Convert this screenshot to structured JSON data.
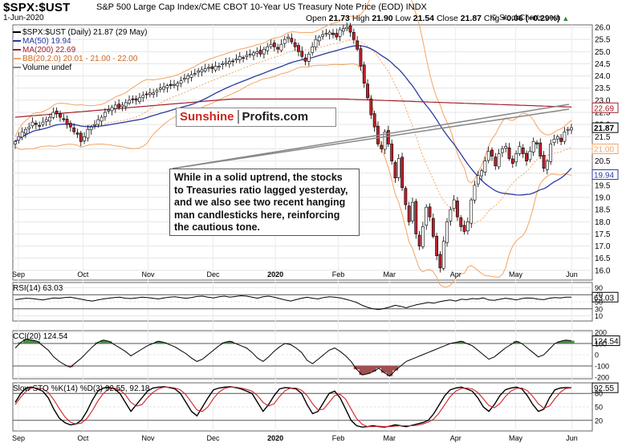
{
  "header": {
    "symbol": "$SPX:$UST",
    "description": "S&P 500 Large Cap Index/CME CBOT 10-Year US Treasury Note Price (EOD)  INDX",
    "date": "1-Jun-2020",
    "copyright": "© StockCharts.com",
    "ohlc": {
      "open_label": "Open",
      "open": "21.73",
      "high_label": "High",
      "high": "21.90",
      "low_label": "Low",
      "low": "21.54",
      "close_label": "Close",
      "close": "21.87",
      "chg_label": "Chg",
      "chg": "+0.06 (+0.29%)",
      "chg_icon": "up-arrow-icon"
    }
  },
  "legend": {
    "main": "$SPX:$UST (Daily) 21.87 (29 May)",
    "ma50": "MA(50) 19.94",
    "ma200": "MA(200) 22.69",
    "bb": "BB(20,2.0) 20.01 - 21.00 - 22.00",
    "volume": "Volume undef"
  },
  "colors": {
    "ma50": "#2b3a9e",
    "ma200": "#a0202a",
    "bb": "#f4a460",
    "up": "#ffffff",
    "down": "#c0202a",
    "stoch_k": "#000000",
    "stoch_d": "#d0202a",
    "area_pos": "#4a8a4a",
    "area_neg": "#a05050"
  },
  "logo": {
    "part1": "Sunshine",
    "part2": "Profits.com"
  },
  "annotation": "While in a solid uptrend, the stocks to Treasuries ratio lagged yesterday, and we also see two recent hanging man candlesticks here, reinforcing the cautious tone.",
  "chart_data": [
    {
      "type": "candlestick",
      "title": "$SPX:$UST (Daily)",
      "x_labels": [
        "Sep",
        "Oct",
        "Nov",
        "Dec",
        "2020",
        "Feb",
        "Mar",
        "Apr",
        "May",
        "Jun"
      ],
      "ylim": [
        15.6,
        26.1
      ],
      "y_ticks": [
        "26.0",
        "25.5",
        "25.0",
        "24.5",
        "24.0",
        "23.5",
        "23.0",
        "22.5",
        "22.0",
        "21.5",
        "21.0",
        "20.5",
        "20.0",
        "19.5",
        "19.0",
        "18.5",
        "18.0",
        "17.5",
        "17.0",
        "16.5",
        "16.0"
      ],
      "price_tags": [
        {
          "label": "22.69",
          "value": 22.69,
          "color": "#a0202a"
        },
        {
          "label": "21.87",
          "value": 21.87,
          "color": "#000000"
        },
        {
          "label": "21.00",
          "value": 21.0,
          "color": "#f4a460"
        },
        {
          "label": "19.94",
          "value": 19.94,
          "color": "#2b3a9e"
        }
      ],
      "close_series": [
        21.3,
        21.5,
        21.7,
        21.8,
        21.9,
        22.1,
        22.0,
        21.95,
        22.1,
        22.2,
        22.3,
        22.5,
        22.45,
        22.3,
        22.2,
        22.0,
        21.9,
        21.7,
        21.6,
        21.3,
        21.5,
        21.8,
        21.9,
        22.0,
        22.2,
        22.3,
        22.5,
        22.6,
        22.7,
        22.8,
        22.7,
        22.8,
        22.9,
        23.0,
        23.05,
        23.0,
        23.1,
        23.2,
        23.25,
        23.3,
        23.3,
        23.4,
        23.5,
        23.55,
        23.6,
        23.6,
        23.65,
        23.7,
        23.8,
        23.9,
        24.0,
        24.05,
        24.1,
        24.2,
        24.25,
        24.3,
        24.35,
        24.3,
        24.4,
        24.4,
        24.5,
        24.55,
        24.6,
        24.6,
        24.7,
        24.8,
        24.75,
        24.85,
        24.9,
        24.95,
        25.0,
        24.9,
        25.1,
        25.2,
        25.3,
        25.2,
        25.1,
        25.3,
        25.5,
        25.6,
        25.4,
        25.2,
        25.0,
        24.8,
        24.6,
        24.9,
        25.2,
        25.5,
        25.6,
        25.7,
        25.75,
        25.8,
        25.7,
        25.6,
        25.9,
        25.95,
        26.0,
        25.8,
        25.5,
        25.1,
        24.4,
        23.7,
        23.1,
        22.4,
        21.9,
        21.2,
        21.0,
        21.7,
        21.2,
        20.5,
        19.8,
        20.6,
        19.4,
        18.7,
        18.0,
        18.8,
        17.5,
        17.0,
        17.8,
        18.6,
        18.2,
        17.4,
        16.6,
        16.1,
        17.2,
        18.0,
        18.5,
        18.9,
        18.2,
        17.8,
        17.6,
        18.0,
        18.9,
        19.5,
        19.9,
        20.1,
        20.5,
        20.9,
        20.7,
        20.3,
        20.8,
        21.0,
        21.1,
        20.6,
        20.4,
        20.8,
        21.1,
        20.8,
        20.5,
        20.9,
        21.3,
        21.2,
        20.7,
        20.2,
        20.5,
        21.2,
        21.4,
        21.5,
        21.3,
        21.7,
        21.8,
        21.87
      ],
      "ma50_last": 19.94,
      "ma200_last": 22.69,
      "bb": {
        "lower": 20.01,
        "middle": 21.0,
        "upper": 22.0
      }
    },
    {
      "type": "line",
      "title": "RSI(14) 63.03",
      "ylim": [
        0,
        100
      ],
      "y_ticks": [
        "90",
        "70",
        "50",
        "30",
        "10"
      ],
      "last": 63.03,
      "values": [
        56,
        58,
        60,
        59,
        57,
        55,
        58,
        61,
        60,
        62,
        63,
        60,
        57,
        54,
        52,
        55,
        58,
        60,
        62,
        63,
        60,
        59,
        61,
        63,
        62,
        60,
        58,
        61,
        63,
        64,
        62,
        60,
        62,
        65,
        66,
        63,
        61,
        64,
        66,
        63,
        65,
        67,
        66,
        63,
        60,
        64,
        66,
        63,
        59,
        55,
        52,
        56,
        60,
        63,
        60,
        58,
        62,
        64,
        63,
        61,
        57,
        53,
        48,
        40,
        34,
        30,
        28,
        31,
        35,
        40,
        37,
        33,
        38,
        42,
        45,
        48,
        46,
        50,
        53,
        55,
        52,
        57,
        56,
        59,
        58,
        61,
        55,
        54,
        57,
        60,
        58,
        55,
        59,
        61,
        60,
        57,
        56,
        60,
        62,
        61,
        63,
        63.03
      ]
    },
    {
      "type": "area",
      "title": "CCI(20) 124.54",
      "ylim": [
        -200,
        200
      ],
      "y_ticks": [
        "200",
        "100",
        "0",
        "-100",
        "-200"
      ],
      "last": 124.54,
      "values": [
        60,
        110,
        140,
        130,
        120,
        80,
        40,
        -20,
        -60,
        -90,
        -110,
        -70,
        -30,
        20,
        70,
        110,
        130,
        120,
        90,
        60,
        30,
        -10,
        20,
        50,
        80,
        100,
        120,
        110,
        90,
        70,
        40,
        10,
        -30,
        -60,
        -40,
        0,
        40,
        80,
        110,
        120,
        100,
        80,
        60,
        20,
        -30,
        -60,
        -20,
        30,
        70,
        100,
        90,
        60,
        20,
        -50,
        -80,
        -40,
        0,
        40,
        60,
        30,
        -10,
        -60,
        -130,
        -180,
        -170,
        -150,
        -120,
        -160,
        -190,
        -140,
        -100,
        -60,
        -40,
        -20,
        0,
        20,
        40,
        60,
        80,
        100,
        110,
        120,
        100,
        80,
        40,
        0,
        -40,
        -20,
        20,
        60,
        90,
        120,
        100,
        60,
        20,
        -20,
        0,
        50,
        100,
        120,
        130,
        124.54
      ]
    },
    {
      "type": "line",
      "title": "Slow STO %K(14) %D(3) 92.55, 92.18",
      "ylim": [
        0,
        100
      ],
      "y_ticks": [
        "80",
        "50",
        "20"
      ],
      "series": [
        {
          "name": "%K",
          "last": 92.55,
          "values": [
            60,
            80,
            92,
            94,
            90,
            85,
            70,
            45,
            25,
            15,
            10,
            12,
            20,
            40,
            65,
            85,
            92,
            94,
            90,
            80,
            60,
            40,
            55,
            70,
            85,
            92,
            94,
            95,
            93,
            90,
            80,
            60,
            40,
            30,
            50,
            70,
            88,
            92,
            94,
            95,
            93,
            90,
            85,
            80,
            60,
            40,
            55,
            75,
            90,
            93,
            92,
            90,
            80,
            55,
            35,
            40,
            60,
            80,
            85,
            70,
            45,
            20,
            8,
            5,
            6,
            8,
            6,
            5,
            7,
            10,
            8,
            6,
            9,
            12,
            15,
            20,
            35,
            55,
            75,
            88,
            92,
            94,
            90,
            85,
            70,
            50,
            40,
            55,
            75,
            88,
            92,
            94,
            90,
            75,
            55,
            40,
            45,
            70,
            88,
            92,
            93,
            92.55
          ]
        },
        {
          "name": "%D",
          "last": 92.18,
          "values": [
            55,
            72,
            85,
            92,
            92,
            90,
            82,
            66,
            46,
            28,
            16,
            12,
            14,
            24,
            42,
            63,
            80,
            90,
            92,
            88,
            77,
            60,
            52,
            55,
            70,
            82,
            90,
            94,
            94,
            92,
            88,
            77,
            60,
            43,
            40,
            50,
            69,
            83,
            91,
            94,
            94,
            92,
            89,
            85,
            75,
            60,
            52,
            57,
            73,
            86,
            92,
            92,
            87,
            75,
            57,
            43,
            45,
            60,
            75,
            78,
            67,
            45,
            24,
            11,
            6,
            6,
            7,
            6,
            6,
            7,
            8,
            8,
            8,
            9,
            12,
            16,
            23,
            37,
            55,
            73,
            85,
            91,
            92,
            90,
            82,
            68,
            53,
            48,
            57,
            73,
            85,
            91,
            92,
            86,
            73,
            57,
            47,
            52,
            68,
            83,
            91,
            92.18
          ]
        }
      ]
    }
  ]
}
